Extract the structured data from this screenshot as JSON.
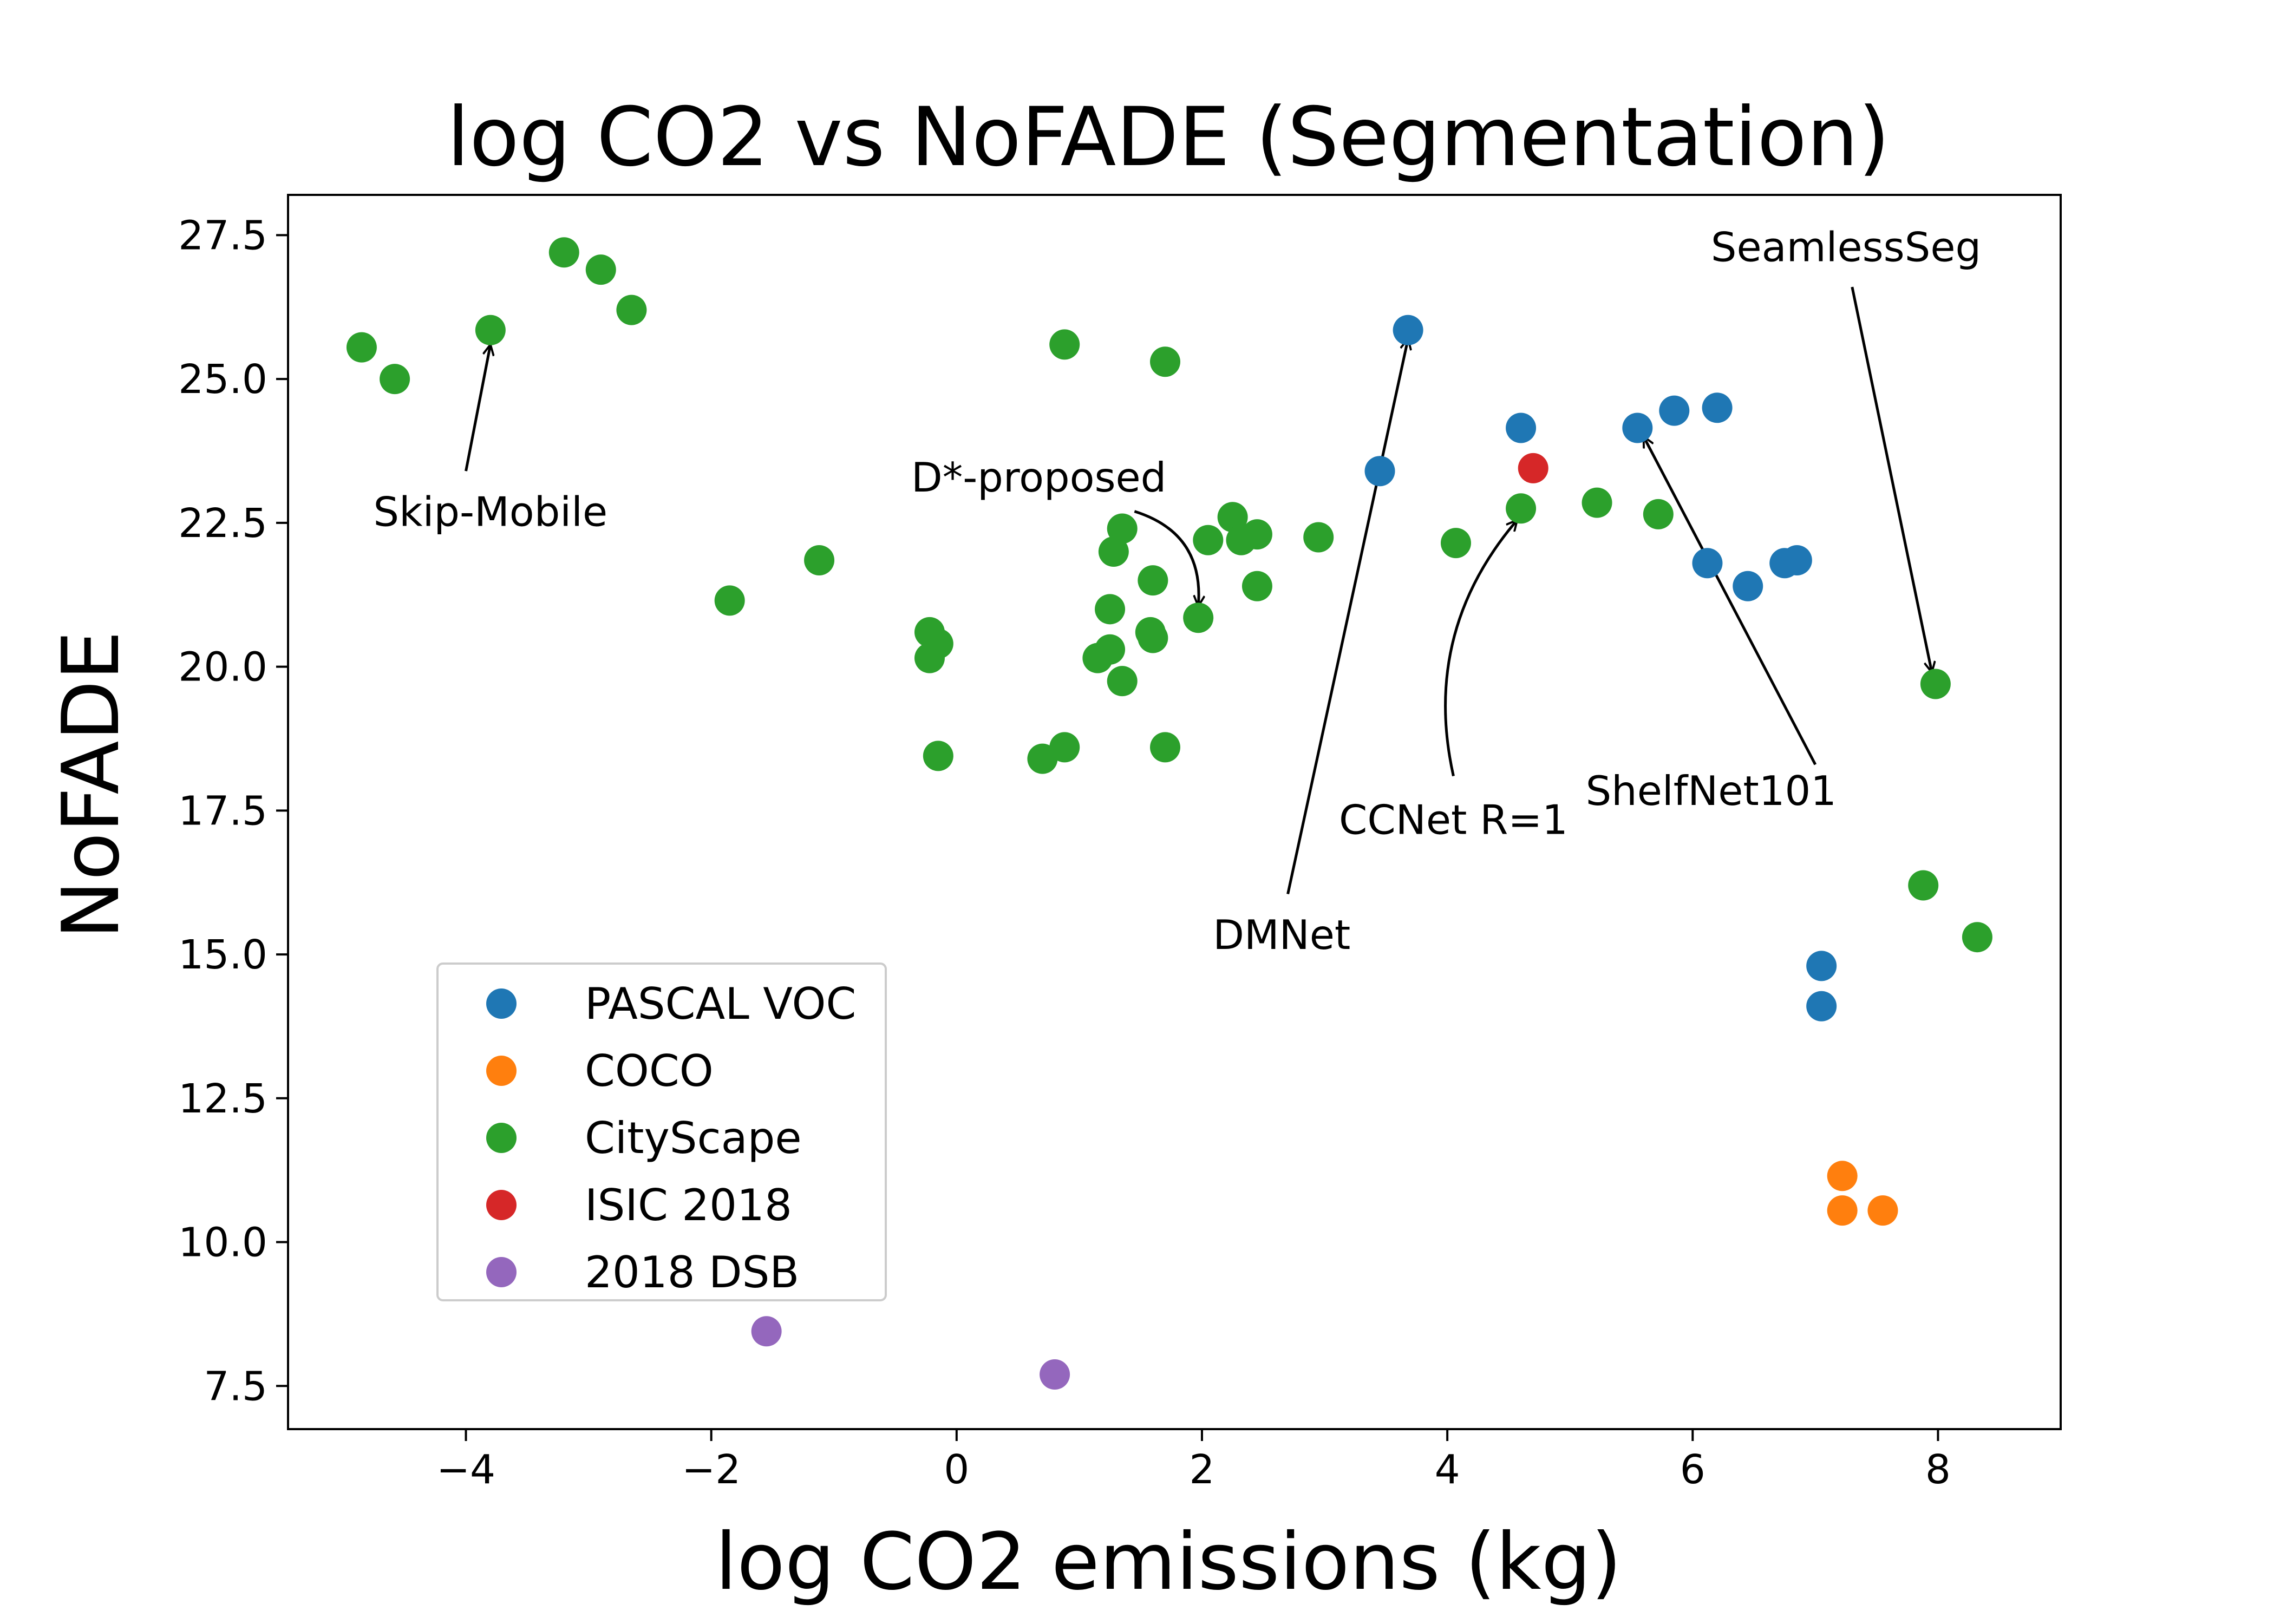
{
  "chart_data": {
    "type": "scatter",
    "title": "log CO2 vs NoFADE (Segmentation)",
    "xlabel": "log CO2 emissions (kg)",
    "ylabel": "NoFADE",
    "xlim": [
      -5.45,
      9.0
    ],
    "ylim": [
      6.75,
      28.2
    ],
    "xticks": [
      -4,
      -2,
      0,
      2,
      4,
      6,
      8
    ],
    "xtick_labels": [
      "−4",
      "−2",
      "0",
      "2",
      "4",
      "6",
      "8"
    ],
    "yticks": [
      7.5,
      10.0,
      12.5,
      15.0,
      17.5,
      20.0,
      22.5,
      25.0,
      27.5
    ],
    "ytick_labels": [
      "7.5",
      "10.0",
      "12.5",
      "15.0",
      "17.5",
      "20.0",
      "22.5",
      "25.0",
      "27.5"
    ],
    "grid": false,
    "legend_position": "lower-left",
    "series": [
      {
        "name": "PASCAL VOC",
        "color": "#1f77b4",
        "points": [
          [
            3.68,
            25.85
          ],
          [
            3.45,
            23.4
          ],
          [
            4.6,
            24.15
          ],
          [
            5.55,
            24.15
          ],
          [
            5.85,
            24.45
          ],
          [
            6.2,
            24.5
          ],
          [
            6.12,
            21.8
          ],
          [
            6.45,
            21.4
          ],
          [
            6.75,
            21.8
          ],
          [
            6.85,
            21.85
          ],
          [
            7.05,
            14.8
          ],
          [
            7.05,
            14.1
          ]
        ]
      },
      {
        "name": "COCO",
        "color": "#ff7f0e",
        "points": [
          [
            7.22,
            11.15
          ],
          [
            7.22,
            10.55
          ],
          [
            7.55,
            10.55
          ]
        ]
      },
      {
        "name": "CityScape",
        "color": "#2ca02c",
        "points": [
          [
            -4.85,
            25.55
          ],
          [
            -4.58,
            25.0
          ],
          [
            -3.8,
            25.85
          ],
          [
            -3.2,
            27.2
          ],
          [
            -2.9,
            26.9
          ],
          [
            -2.65,
            26.2
          ],
          [
            -1.85,
            21.15
          ],
          [
            -1.12,
            21.85
          ],
          [
            -0.22,
            20.6
          ],
          [
            -0.15,
            20.4
          ],
          [
            -0.22,
            20.15
          ],
          [
            -0.15,
            18.45
          ],
          [
            0.88,
            25.6
          ],
          [
            1.7,
            25.3
          ],
          [
            0.7,
            18.4
          ],
          [
            0.88,
            18.6
          ],
          [
            1.7,
            18.6
          ],
          [
            1.35,
            22.4
          ],
          [
            1.28,
            22.0
          ],
          [
            1.25,
            21.0
          ],
          [
            1.25,
            20.3
          ],
          [
            1.15,
            20.15
          ],
          [
            1.35,
            19.75
          ],
          [
            1.6,
            21.5
          ],
          [
            1.58,
            20.6
          ],
          [
            1.6,
            20.5
          ],
          [
            1.97,
            20.85
          ],
          [
            2.05,
            22.2
          ],
          [
            2.25,
            22.6
          ],
          [
            2.32,
            22.2
          ],
          [
            2.45,
            22.3
          ],
          [
            2.45,
            21.4
          ],
          [
            2.95,
            22.25
          ],
          [
            4.07,
            22.15
          ],
          [
            4.6,
            22.75
          ],
          [
            5.22,
            22.85
          ],
          [
            5.72,
            22.65
          ],
          [
            7.98,
            19.7
          ],
          [
            7.88,
            16.2
          ],
          [
            8.32,
            15.3
          ]
        ]
      },
      {
        "name": "ISIC 2018",
        "color": "#d62728",
        "points": [
          [
            4.7,
            23.45
          ]
        ]
      },
      {
        "name": "2018 DSB",
        "color": "#9467bd",
        "points": [
          [
            -1.55,
            8.45
          ],
          [
            0.8,
            7.7
          ]
        ]
      }
    ],
    "annotations": [
      {
        "text": "Skip-Mobile",
        "text_at": [
          -3.8,
          22.7
        ],
        "arrow_tail": [
          -4.0,
          23.4
        ],
        "arrow_head": [
          -3.8,
          25.6
        ],
        "curve": 0
      },
      {
        "text": "D*-proposed",
        "text_at": [
          0.67,
          23.3
        ],
        "arrow_tail": [
          1.45,
          22.7
        ],
        "arrow_head": [
          1.97,
          21.05
        ],
        "curve": -0.4
      },
      {
        "text": "DMNet",
        "text_at": [
          2.65,
          15.35
        ],
        "arrow_tail": [
          2.7,
          16.05
        ],
        "arrow_head": [
          3.68,
          25.7
        ],
        "curve": 0
      },
      {
        "text": "CCNet R=1",
        "text_at": [
          4.05,
          17.35
        ],
        "arrow_tail": [
          4.05,
          18.1
        ],
        "arrow_head": [
          4.57,
          22.55
        ],
        "curve": -0.25
      },
      {
        "text": "ShelfNet101",
        "text_at": [
          6.15,
          17.85
        ],
        "arrow_tail": [
          7.0,
          18.3
        ],
        "arrow_head": [
          5.6,
          24.0
        ],
        "curve": 0
      },
      {
        "text": "SeamlessSeg",
        "text_at": [
          7.25,
          27.3
        ],
        "arrow_tail": [
          7.3,
          26.6
        ],
        "arrow_head": [
          7.95,
          19.9
        ],
        "curve": 0
      }
    ]
  }
}
